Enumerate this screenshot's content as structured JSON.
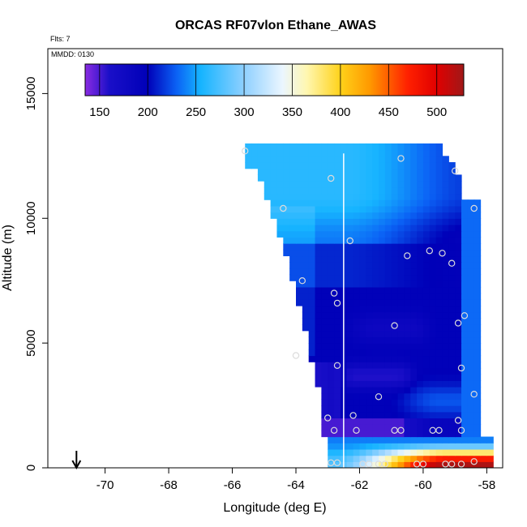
{
  "chart_data": {
    "type": "heatmap",
    "title": "ORCAS RF07vlon Ethane_AWAS",
    "top_left_note": "Flts: 7",
    "inner_note": "MMDD: 0130",
    "xlabel": "Longitude (deg E)",
    "ylabel": "Altitude (m)",
    "xlim": [
      -71.8,
      -57.5
    ],
    "ylim": [
      0,
      16800
    ],
    "x_ticks": [
      -70,
      -68,
      -66,
      -64,
      -62,
      -60,
      -58
    ],
    "x_tick_labels": [
      "-70",
      "-68",
      "-66",
      "-64",
      "-62",
      "-60",
      "-58"
    ],
    "y_ticks": [
      0,
      5000,
      10000,
      15000
    ],
    "y_tick_labels": [
      "0",
      "5000",
      "10000",
      "15000"
    ],
    "colorbar": {
      "range": [
        135,
        528
      ],
      "ticks": [
        150,
        200,
        250,
        300,
        350,
        400,
        450,
        500
      ],
      "tick_labels": [
        "150",
        "200",
        "250",
        "300",
        "350",
        "400",
        "450",
        "500"
      ],
      "stops": [
        {
          "value": 135,
          "color": "#8a2be2"
        },
        {
          "value": 160,
          "color": "#1a0fc8"
        },
        {
          "value": 200,
          "color": "#0000b8"
        },
        {
          "value": 230,
          "color": "#0b62f5"
        },
        {
          "value": 255,
          "color": "#16b4ff"
        },
        {
          "value": 300,
          "color": "#8fd0ff"
        },
        {
          "value": 340,
          "color": "#ebf6ff"
        },
        {
          "value": 365,
          "color": "#fff7b0"
        },
        {
          "value": 400,
          "color": "#ffd21a"
        },
        {
          "value": 430,
          "color": "#ff9a00"
        },
        {
          "value": 470,
          "color": "#ff2000"
        },
        {
          "value": 500,
          "color": "#e00000"
        },
        {
          "value": 528,
          "color": "#a01818"
        }
      ]
    },
    "vertical_line_lon": -62.5,
    "arrow_lon": -70.9,
    "sample_points": [
      {
        "lon": -65.6,
        "alt": 12700
      },
      {
        "lon": -62.9,
        "alt": 11600
      },
      {
        "lon": -60.7,
        "alt": 12400
      },
      {
        "lon": -59.0,
        "alt": 11900
      },
      {
        "lon": -64.4,
        "alt": 10400
      },
      {
        "lon": -58.4,
        "alt": 10400
      },
      {
        "lon": -62.3,
        "alt": 9100
      },
      {
        "lon": -60.5,
        "alt": 8500
      },
      {
        "lon": -59.8,
        "alt": 8700
      },
      {
        "lon": -59.4,
        "alt": 8600
      },
      {
        "lon": -59.1,
        "alt": 8200
      },
      {
        "lon": -63.8,
        "alt": 7500
      },
      {
        "lon": -62.8,
        "alt": 7000
      },
      {
        "lon": -62.7,
        "alt": 6600
      },
      {
        "lon": -58.7,
        "alt": 6100
      },
      {
        "lon": -60.9,
        "alt": 5700
      },
      {
        "lon": -58.9,
        "alt": 5800
      },
      {
        "lon": -64.0,
        "alt": 4500
      },
      {
        "lon": -62.7,
        "alt": 4100
      },
      {
        "lon": -58.8,
        "alt": 4000
      },
      {
        "lon": -58.4,
        "alt": 2950
      },
      {
        "lon": -61.4,
        "alt": 2850
      },
      {
        "lon": -62.2,
        "alt": 2100
      },
      {
        "lon": -63.0,
        "alt": 2000
      },
      {
        "lon": -58.9,
        "alt": 1900
      },
      {
        "lon": -62.8,
        "alt": 1500
      },
      {
        "lon": -62.1,
        "alt": 1500
      },
      {
        "lon": -60.9,
        "alt": 1500
      },
      {
        "lon": -60.7,
        "alt": 1500
      },
      {
        "lon": -59.7,
        "alt": 1500
      },
      {
        "lon": -59.5,
        "alt": 1500
      },
      {
        "lon": -58.8,
        "alt": 1500
      },
      {
        "lon": -62.9,
        "alt": 200
      },
      {
        "lon": -62.7,
        "alt": 200
      },
      {
        "lon": -61.9,
        "alt": 150
      },
      {
        "lon": -61.7,
        "alt": 150
      },
      {
        "lon": -61.4,
        "alt": 150
      },
      {
        "lon": -61.2,
        "alt": 150
      },
      {
        "lon": -60.2,
        "alt": 150
      },
      {
        "lon": -60.0,
        "alt": 150
      },
      {
        "lon": -59.3,
        "alt": 150
      },
      {
        "lon": -59.1,
        "alt": 150
      },
      {
        "lon": -58.8,
        "alt": 150
      },
      {
        "lon": -58.4,
        "alt": 250
      }
    ]
  }
}
